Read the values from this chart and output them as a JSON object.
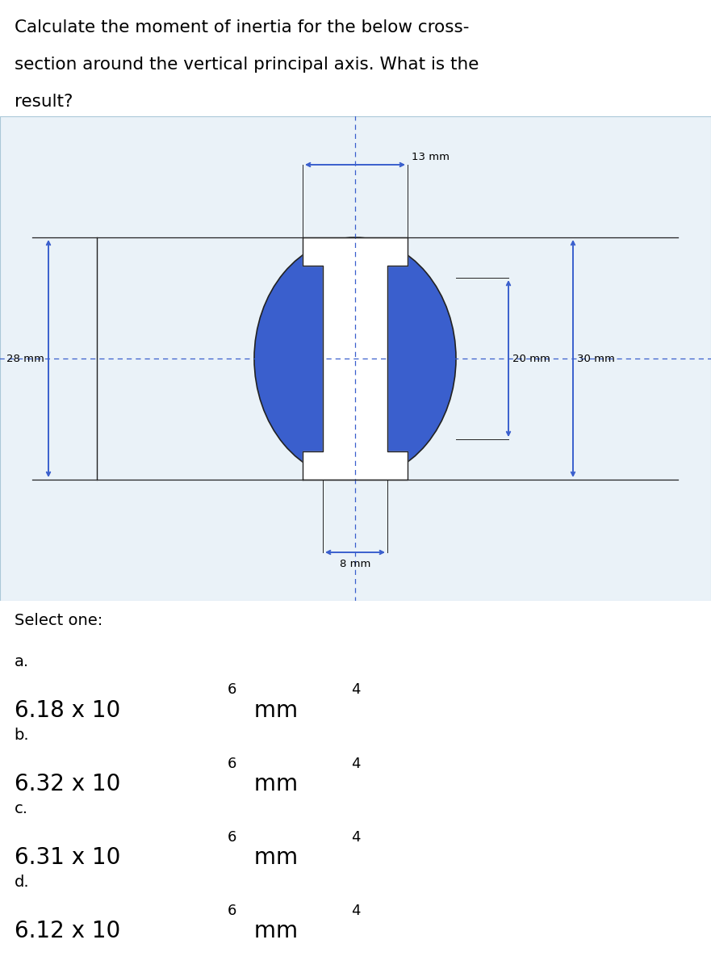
{
  "title_line1": "Calculate the moment of inertia for the below cross-",
  "title_line2": "section around the vertical principal axis. What is the",
  "title_line3": "result?",
  "title_fontsize": 15.5,
  "bg_color": "#ffffff",
  "diagram_bg": "#eaf2f8",
  "blue_fill": "#3a5fcd",
  "white_fill": "#ffffff",
  "dark_line": "#222222",
  "dim_color": "#3a5fcd",
  "select_one": "Select one:",
  "dim_13": "13 mm",
  "dim_28": "28 mm",
  "dim_20": "20 mm",
  "dim_30": "30 mm",
  "dim_8": "8 mm",
  "options_label": [
    "a.",
    "b.",
    "c.",
    "d."
  ],
  "options_val": [
    "6.18 x 10",
    "6.32 x 10",
    "6.31 x 10",
    "6.12 x 10"
  ],
  "options_exp": [
    "6",
    "6",
    "6",
    "6"
  ],
  "options_unit": [
    " mm",
    " mm",
    " mm",
    " mm"
  ],
  "options_uexp": [
    "4",
    "4",
    "4",
    "4"
  ]
}
